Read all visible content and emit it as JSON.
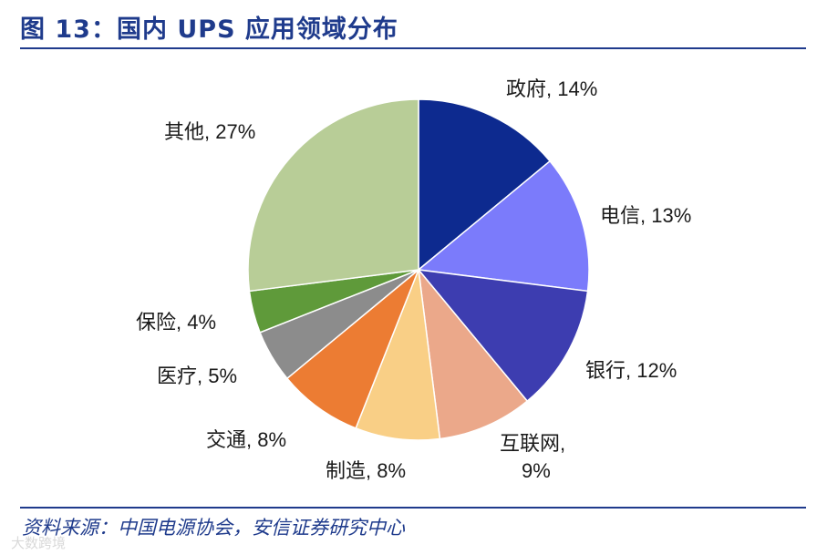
{
  "header": {
    "title": "图 13：国内 UPS 应用领域分布"
  },
  "footer": {
    "source": "资料来源：中国电源协会，安信证券研究中心",
    "watermark": "大数跨境"
  },
  "chart_data": {
    "type": "pie",
    "categories": [
      "政府",
      "电信",
      "银行",
      "互联网",
      "制造",
      "交通",
      "医疗",
      "保险",
      "其他"
    ],
    "values": [
      14,
      13,
      12,
      9,
      8,
      8,
      5,
      4,
      27
    ],
    "unit": "%",
    "labels": [
      "政府, 14%",
      "电信, 13%",
      "银行, 12%",
      "互联网,",
      "制造, 8%",
      "交通, 8%",
      "医疗, 5%",
      "保险, 4%",
      "其他, 27%"
    ],
    "label_line2": {
      "3": "9%"
    },
    "colors": [
      "#0d2a8f",
      "#7b7bfb",
      "#3d3db0",
      "#eba88a",
      "#f9cf86",
      "#ec7c33",
      "#8c8c8c",
      "#5f9a3a",
      "#b8cd97"
    ]
  }
}
